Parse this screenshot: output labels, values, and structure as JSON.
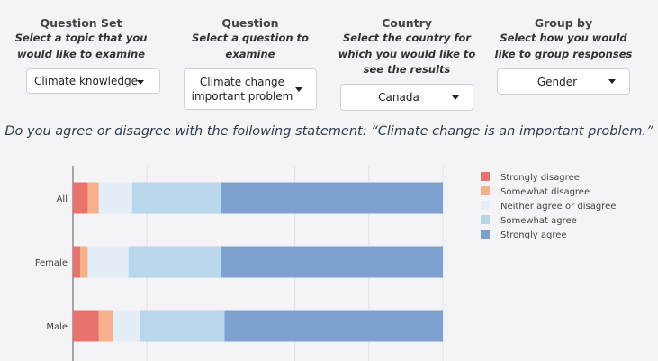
{
  "controls": [
    {
      "title": "Question Set",
      "subtitle_lines": [
        "Select a topic that you",
        "would like to examine"
      ],
      "value_lines": [
        "Climate knowledge"
      ]
    },
    {
      "title": "Question",
      "subtitle_lines": [
        "Select a question to",
        "examine"
      ],
      "value_lines": [
        "Climate change",
        "important problem"
      ]
    },
    {
      "title": "Country",
      "subtitle_lines": [
        "Select the country for",
        "which you would like to",
        "see the results"
      ],
      "value_lines": [
        "Canada"
      ]
    },
    {
      "title": "Group by",
      "subtitle_lines": [
        "Select how you would",
        "like to group responses"
      ],
      "value_lines": [
        "Gender"
      ]
    }
  ],
  "question_text": "Do you agree or disagree with the following statement: “Climate change is an important problem.”",
  "chart_data": {
    "type": "bar",
    "orientation": "horizontal",
    "stacked": true,
    "categories": [
      "All",
      "Female",
      "Male"
    ],
    "series": [
      {
        "name": "Strongly disagree",
        "color": "#e8736c",
        "values": [
          4,
          2,
          7
        ]
      },
      {
        "name": "Somewhat disagree",
        "color": "#f6b08a",
        "values": [
          3,
          2,
          4
        ]
      },
      {
        "name": "Neither agree or disagree",
        "color": "#e4eef6",
        "values": [
          9,
          11,
          7
        ]
      },
      {
        "name": "Somewhat agree",
        "color": "#b9d7ea",
        "values": [
          24,
          25,
          23
        ]
      },
      {
        "name": "Strongly agree",
        "color": "#7ea2cf",
        "values": [
          60,
          60,
          59
        ]
      }
    ],
    "xlim": [
      0,
      100
    ],
    "grid": true,
    "legend_position": "right",
    "title": "",
    "xlabel": "",
    "ylabel": ""
  }
}
